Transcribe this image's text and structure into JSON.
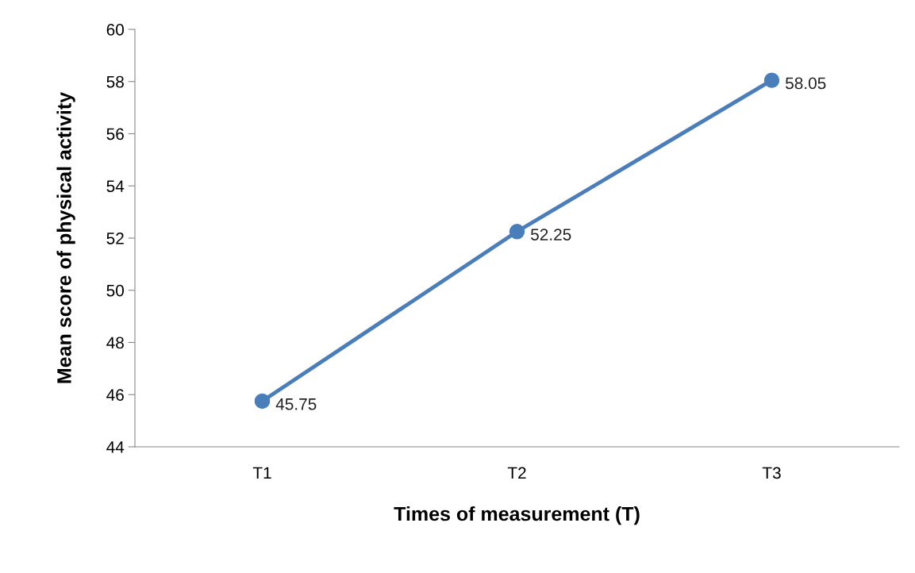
{
  "chart_data": {
    "type": "line",
    "xlabel": "Times of measurement (T)",
    "ylabel": "Mean score of physical activity",
    "categories": [
      "T1",
      "T2",
      "T3"
    ],
    "series": [
      {
        "color": "#4a7ebb",
        "values": [
          45.75,
          52.25,
          58.05
        ]
      }
    ],
    "ylim": [
      44,
      60
    ],
    "yticks": [
      44,
      46,
      48,
      50,
      52,
      54,
      56,
      58,
      60
    ],
    "grid": false,
    "legend": false,
    "marker": "circle",
    "line_style": "solid",
    "data_labels": true
  }
}
